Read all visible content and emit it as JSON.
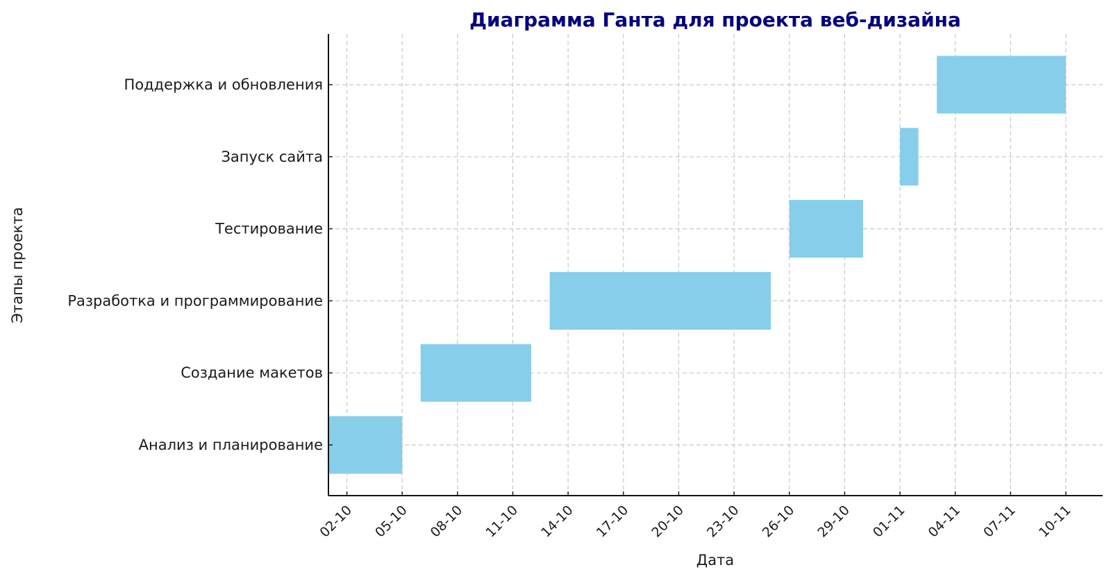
{
  "chart_data": {
    "type": "bar",
    "orientation": "horizontal-gantt",
    "title": "Диаграмма Ганта для проекта веб-дизайна",
    "xlabel": "Дата",
    "ylabel": "Этапы проекта",
    "xlim": [
      "01-10",
      "12-11"
    ],
    "grid": true,
    "date_format": "DD-MM",
    "x_ticks": [
      "02-10",
      "05-10",
      "08-10",
      "11-10",
      "14-10",
      "17-10",
      "20-10",
      "23-10",
      "26-10",
      "29-10",
      "01-11",
      "04-11",
      "07-11",
      "10-11"
    ],
    "tasks": [
      {
        "name": "Анализ и планирование",
        "start": "01-10",
        "end": "05-10"
      },
      {
        "name": "Создание макетов",
        "start": "06-10",
        "end": "12-10"
      },
      {
        "name": "Разработка и программирование",
        "start": "13-10",
        "end": "25-10"
      },
      {
        "name": "Тестирование",
        "start": "26-10",
        "end": "30-10"
      },
      {
        "name": "Запуск сайта",
        "start": "01-11",
        "end": "02-11"
      },
      {
        "name": "Поддержка и обновления",
        "start": "03-11",
        "end": "10-11"
      }
    ],
    "colors": {
      "bar": "#87ceeb",
      "title": "#000080",
      "grid": "#c8c8c8"
    }
  }
}
